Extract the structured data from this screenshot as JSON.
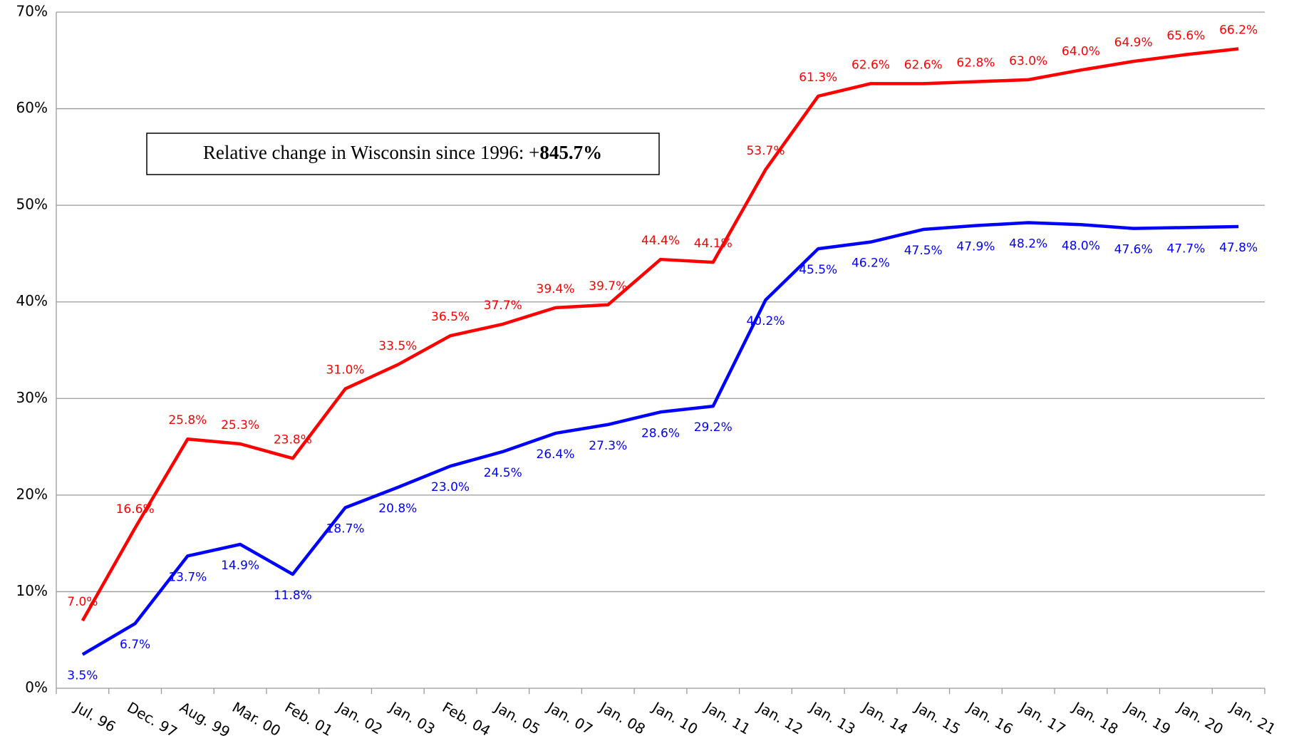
{
  "chart_data": {
    "type": "line",
    "categories": [
      "Jul. 96",
      "Dec. 97",
      "Aug. 99",
      "Mar. 00",
      "Feb. 01",
      "Jan. 02",
      "Jan. 03",
      "Feb. 04",
      "Jan. 05",
      "Jan. 07",
      "Jan. 08",
      "Jan. 10",
      "Jan. 11",
      "Jan. 12",
      "Jan. 13",
      "Jan. 14",
      "Jan. 15",
      "Jan. 16",
      "Jan. 17",
      "Jan. 18",
      "Jan. 19",
      "Jan. 20",
      "Jan. 21"
    ],
    "series": [
      {
        "color": "#ff0000",
        "values": [
          7.0,
          16.6,
          25.8,
          25.3,
          23.8,
          31.0,
          33.5,
          36.5,
          37.7,
          39.4,
          39.7,
          44.4,
          44.1,
          53.7,
          61.3,
          62.6,
          62.6,
          62.8,
          63.0,
          64.0,
          64.9,
          65.6,
          66.2
        ],
        "value_labels": [
          "7.0%",
          "16.6%",
          "25.8%",
          "25.3%",
          "23.8%",
          "31.0%",
          "33.5%",
          "36.5%",
          "37.7%",
          "39.4%",
          "39.7%",
          "44.4%",
          "44.1%",
          "53.7%",
          "61.3%",
          "62.6%",
          "62.6%",
          "62.8%",
          "63.0%",
          "64.0%",
          "64.9%",
          "65.6%",
          "66.2%"
        ]
      },
      {
        "color": "#0000ff",
        "values": [
          3.5,
          6.7,
          13.7,
          14.9,
          11.8,
          18.7,
          20.8,
          23.0,
          24.5,
          26.4,
          27.3,
          28.6,
          29.2,
          40.2,
          45.5,
          46.2,
          47.5,
          47.9,
          48.2,
          48.0,
          47.6,
          47.7,
          47.8
        ],
        "value_labels": [
          "3.5%",
          "6.7%",
          "13.7%",
          "14.9%",
          "11.8%",
          "18.7%",
          "20.8%",
          "23.0%",
          "24.5%",
          "26.4%",
          "27.3%",
          "28.6%",
          "29.2%",
          "40.2%",
          "45.5%",
          "46.2%",
          "47.5%",
          "47.9%",
          "48.2%",
          "48.0%",
          "47.6%",
          "47.7%",
          "47.8%"
        ]
      }
    ],
    "ylim": [
      0,
      70
    ],
    "yticks": [
      {
        "value": 0,
        "label": "0%"
      },
      {
        "value": 10,
        "label": "10%"
      },
      {
        "value": 20,
        "label": "20%"
      },
      {
        "value": 30,
        "label": "30%"
      },
      {
        "value": 40,
        "label": "40%"
      },
      {
        "value": 50,
        "label": "50%"
      },
      {
        "value": 60,
        "label": "60%"
      },
      {
        "value": 70,
        "label": "70%"
      }
    ],
    "grid": true,
    "annotation": {
      "text": "Relative change in Wisconsin since 1996: +",
      "emphasis": "845.7%"
    }
  }
}
